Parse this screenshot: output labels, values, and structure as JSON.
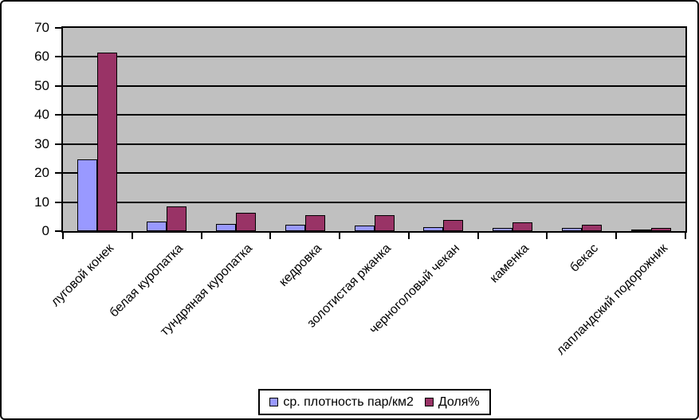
{
  "chart_data": {
    "type": "bar",
    "title": "",
    "categories": [
      "луговой конек",
      "белая куропатка",
      "тундряная куропатка",
      "кедровка",
      "золотистая ржанка",
      "черноголовый чекан",
      "каменка",
      "бекас",
      "лапландский подорожник"
    ],
    "series": [
      {
        "name": "ср. плотность пар/км2",
        "color": "#9999ff",
        "values": [
          24.8,
          3.4,
          2.4,
          2.2,
          2.0,
          1.5,
          1.2,
          1.1,
          0.3
        ]
      },
      {
        "name": "Доля%",
        "color": "#993366",
        "values": [
          61.5,
          8.5,
          6.2,
          5.5,
          5.4,
          3.8,
          3.0,
          2.3,
          1.1
        ]
      }
    ],
    "xlabel": "",
    "ylabel": "",
    "ylim": [
      0,
      70
    ],
    "yticks": [
      0,
      10,
      20,
      30,
      40,
      50,
      60,
      70
    ],
    "grid": true,
    "legend_position": "bottom",
    "plot_background": "#c0c0c0",
    "gridline_color": "#000000",
    "chart_background": "#ffffff"
  }
}
